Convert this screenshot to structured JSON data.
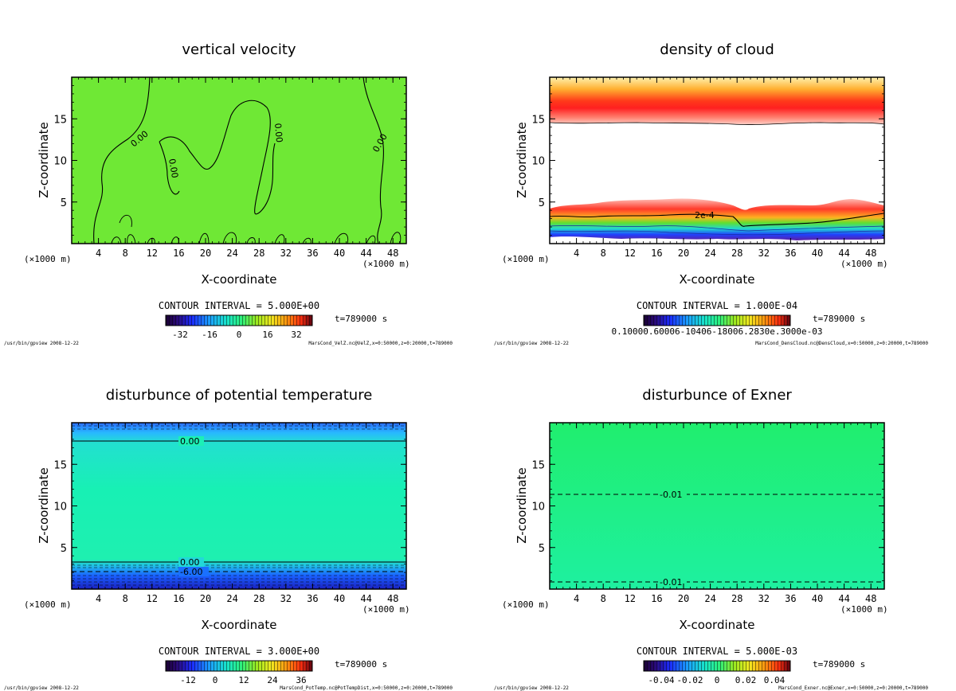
{
  "panels": [
    {
      "id": "vertical-velocity",
      "title": "vertical velocity",
      "ylabel": "Z-coordinate",
      "xlabel": "X-coordinate",
      "xunit_left": "(×1000 m)",
      "xunit_right": "(×1000 m)",
      "contour_interval": "CONTOUR INTERVAL = 5.000E+00",
      "time_label": "t=789000 s",
      "colorbar_ticks": [
        "-32",
        "-16",
        "0",
        "16",
        "32"
      ],
      "footer_left": "/usr/bin/gpview  2008-12-22",
      "footer_right": "MarsCond_VelZ.nc@VelZ,x=0:50000,z=0:20000,t=789000",
      "contour_labels": [
        "0.00",
        "0.00",
        "0.00",
        "0.00"
      ]
    },
    {
      "id": "density-of-cloud",
      "title": "density of cloud",
      "ylabel": "Z-coordinate",
      "xlabel": "X-coordinate",
      "xunit_left": "(×1000 m)",
      "xunit_right": "(×1000 m)",
      "contour_interval": "CONTOUR INTERVAL = 1.000E-04",
      "time_label": "t=789000 s",
      "colorbar_ticks_text": "0.10000.60006-10406-18006.2830e.3000e-03",
      "footer_left": "/usr/bin/gpview  2008-12-22",
      "footer_right": "MarsCond_DensCloud.nc@DensCloud,x=0:50000,z=0:20000,t=789000",
      "contour_labels": [
        "2e-4"
      ]
    },
    {
      "id": "potential-temperature",
      "title": "disturbunce of potential temperature",
      "ylabel": "Z-coordinate",
      "xlabel": "X-coordinate",
      "xunit_left": "(×1000 m)",
      "xunit_right": "(×1000 m)",
      "contour_interval": "CONTOUR INTERVAL = 3.000E+00",
      "time_label": "t=789000 s",
      "colorbar_ticks": [
        "-12",
        "0",
        "12",
        "24",
        "36"
      ],
      "footer_left": "/usr/bin/gpview  2008-12-22",
      "footer_right": "MarsCond_PotTemp.nc@PotTempDist,x=0:50000,z=0:20000,t=789000",
      "contour_labels": [
        "0.00",
        "0.00",
        "-6.00"
      ]
    },
    {
      "id": "exner",
      "title": "disturbunce of Exner",
      "ylabel": "Z-coordinate",
      "xlabel": "X-coordinate",
      "xunit_left": "(×1000 m)",
      "xunit_right": "(×1000 m)",
      "contour_interval": "CONTOUR INTERVAL = 5.000E-03",
      "time_label": "t=789000 s",
      "colorbar_ticks": [
        "-0.04",
        "-0.02",
        "0",
        "0.02",
        "0.04"
      ],
      "footer_left": "/usr/bin/gpview  2008-12-22",
      "footer_right": "MarsCond_Exner.nc@Exner,x=0:50000,z=0:20000,t=789000",
      "contour_labels": [
        "-0.01",
        "-0.01"
      ]
    }
  ],
  "chart_data": [
    {
      "type": "heatmap",
      "title": "vertical velocity",
      "xlabel": "X-coordinate",
      "ylabel": "Z-coordinate",
      "xlim": [
        0,
        50
      ],
      "ylim": [
        0,
        20
      ],
      "x_ticks": [
        4,
        8,
        12,
        16,
        20,
        24,
        28,
        32,
        36,
        40,
        44,
        48
      ],
      "y_ticks": [
        5,
        10,
        15
      ],
      "colorbar_range": [
        -32,
        32
      ],
      "contour_interval": 5.0,
      "contour_line_value": 0.0
    },
    {
      "type": "heatmap",
      "title": "density of cloud",
      "xlabel": "X-coordinate",
      "ylabel": "Z-coordinate",
      "xlim": [
        0,
        50
      ],
      "ylim": [
        0,
        20
      ],
      "x_ticks": [
        4,
        8,
        12,
        16,
        20,
        24,
        28,
        32,
        36,
        40,
        44,
        48
      ],
      "y_ticks": [
        5,
        10,
        15
      ],
      "upper_cloud_layer_z": [
        14.5,
        20
      ],
      "lower_cloud_layer_z": [
        1,
        5.5
      ],
      "contour_interval": 0.0001,
      "contour_line_value": 0.0002
    },
    {
      "type": "heatmap",
      "title": "disturbunce of potential temperature",
      "xlabel": "X-coordinate",
      "ylabel": "Z-coordinate",
      "xlim": [
        0,
        50
      ],
      "ylim": [
        0,
        20
      ],
      "x_ticks": [
        4,
        8,
        12,
        16,
        20,
        24,
        28,
        32,
        36,
        40,
        44,
        48
      ],
      "y_ticks": [
        5,
        10,
        15
      ],
      "colorbar_range": [
        -18,
        40
      ],
      "contour_interval": 3.0,
      "contour_lines": [
        {
          "value": 0.0,
          "z": 17.8
        },
        {
          "value": 0.0,
          "z": 3.3
        },
        {
          "value": -6.0,
          "z": 2.0
        }
      ]
    },
    {
      "type": "heatmap",
      "title": "disturbunce of Exner",
      "xlabel": "X-coordinate",
      "ylabel": "Z-coordinate",
      "xlim": [
        0,
        50
      ],
      "ylim": [
        0,
        20
      ],
      "x_ticks": [
        4,
        8,
        12,
        16,
        20,
        24,
        28,
        32,
        36,
        40,
        44,
        48
      ],
      "y_ticks": [
        5,
        10,
        15
      ],
      "colorbar_range": [
        -0.05,
        0.05
      ],
      "contour_interval": 0.005,
      "contour_lines": [
        {
          "value": -0.01,
          "z": 11.3
        },
        {
          "value": -0.01,
          "z": 0.9
        }
      ]
    }
  ]
}
